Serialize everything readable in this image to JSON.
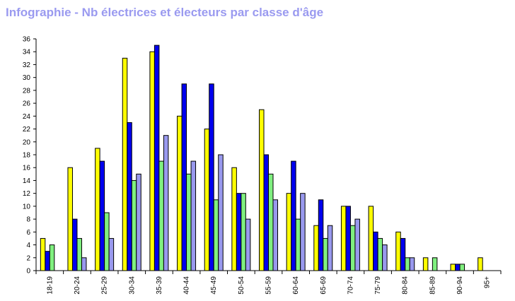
{
  "title": "Infographie - Nb électrices et électeurs par classe d'âge",
  "chart_data": {
    "type": "bar",
    "title": "Infographie - Nb électrices et électeurs par classe d'âge",
    "xlabel": "",
    "ylabel": "",
    "ylim": [
      0,
      36
    ],
    "yticks": [
      0,
      2,
      4,
      6,
      8,
      10,
      12,
      14,
      16,
      18,
      20,
      22,
      24,
      26,
      28,
      30,
      32,
      34,
      36
    ],
    "grid": false,
    "legend": "none",
    "categories": [
      "18-19",
      "20-24",
      "25-29",
      "30-34",
      "35-39",
      "40-44",
      "45-49",
      "50-54",
      "55-59",
      "60-64",
      "65-69",
      "70-74",
      "75-79",
      "80-84",
      "85-89",
      "90-94",
      "95+"
    ],
    "series": [
      {
        "color": "#ffff00",
        "values": [
          5,
          16,
          19,
          33,
          34,
          24,
          22,
          16,
          25,
          12,
          7,
          10,
          10,
          6,
          2,
          1,
          2
        ]
      },
      {
        "color": "#0000ee",
        "values": [
          3,
          8,
          17,
          23,
          35,
          29,
          29,
          12,
          18,
          17,
          11,
          10,
          6,
          5,
          0,
          1,
          0
        ]
      },
      {
        "color": "#80f080",
        "values": [
          4,
          5,
          9,
          14,
          17,
          15,
          11,
          12,
          15,
          8,
          5,
          7,
          5,
          2,
          2,
          1,
          0
        ]
      },
      {
        "color": "#9999ee",
        "values": [
          0,
          2,
          5,
          15,
          21,
          17,
          18,
          8,
          11,
          12,
          7,
          8,
          4,
          2,
          0,
          0,
          0
        ]
      }
    ]
  }
}
